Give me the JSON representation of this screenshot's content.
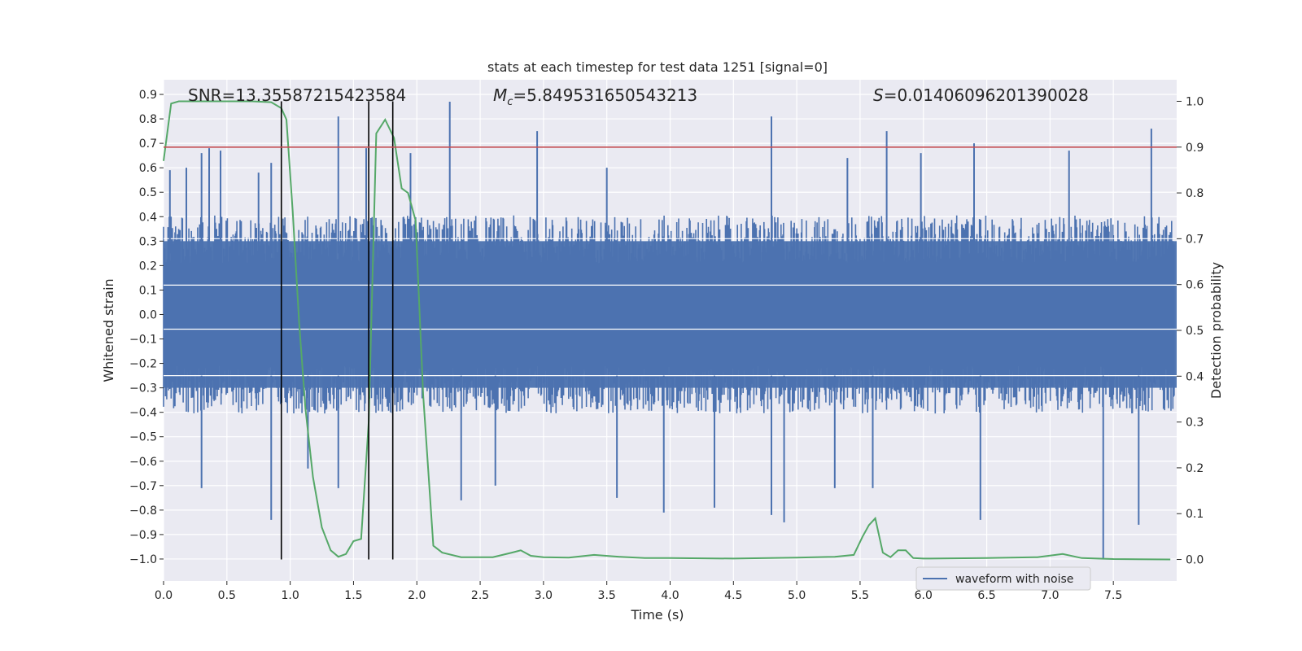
{
  "chart_data": {
    "type": "line",
    "title": "stats at each timestep for test data 1251 [signal=0]",
    "xlabel": "Time (s)",
    "ylabel": "Whitened strain",
    "y2label": "Detection probability",
    "xlim": [
      0.0,
      8.0
    ],
    "ylim": [
      -1.09,
      0.96
    ],
    "y2lim": [
      -0.047,
      1.047
    ],
    "x_ticks": [
      0.0,
      0.5,
      1.0,
      1.5,
      2.0,
      2.5,
      3.0,
      3.5,
      4.0,
      4.5,
      5.0,
      5.5,
      6.0,
      6.5,
      7.0,
      7.5
    ],
    "y_ticks": [
      0.9,
      0.8,
      0.7,
      0.6,
      0.5,
      0.4,
      0.3,
      0.2,
      0.1,
      0.0,
      -0.1,
      -0.2,
      -0.3,
      -0.4,
      -0.5,
      -0.6,
      -0.7,
      -0.8,
      -0.9,
      -1.0
    ],
    "y2_ticks": [
      1.0,
      0.9,
      0.8,
      0.7,
      0.6,
      0.5,
      0.4,
      0.3,
      0.2,
      0.1,
      0.0
    ],
    "grid": true,
    "legend_position": "bottom-right",
    "annotations": {
      "snr": "SNR=13.35587215423584",
      "mc_symbol": "M",
      "mc_sub": "c",
      "mc_value": "=5.849531650543213",
      "s_symbol": "S",
      "s_value": "=0.01406096201390028"
    },
    "colors": {
      "waveform": "#4c72b0",
      "probability": "#55a868",
      "threshold": "#c44e52",
      "markers": "#000000",
      "background": "#eaeaf2",
      "grid": "#ffffff"
    },
    "series": [
      {
        "name": "waveform with noise",
        "axis": "left",
        "style": "noise",
        "typical_amplitude": 0.3,
        "sample_count": 1600,
        "positive_spikes": [
          {
            "x": 0.05,
            "y": 0.59
          },
          {
            "x": 0.18,
            "y": 0.6
          },
          {
            "x": 0.3,
            "y": 0.66
          },
          {
            "x": 0.36,
            "y": 0.68
          },
          {
            "x": 0.45,
            "y": 0.67
          },
          {
            "x": 0.75,
            "y": 0.58
          },
          {
            "x": 0.85,
            "y": 0.62
          },
          {
            "x": 1.38,
            "y": 0.81
          },
          {
            "x": 1.6,
            "y": 0.68
          },
          {
            "x": 1.95,
            "y": 0.66
          },
          {
            "x": 2.26,
            "y": 0.87
          },
          {
            "x": 2.95,
            "y": 0.75
          },
          {
            "x": 3.5,
            "y": 0.6
          },
          {
            "x": 4.8,
            "y": 0.81
          },
          {
            "x": 5.4,
            "y": 0.64
          },
          {
            "x": 5.71,
            "y": 0.75
          },
          {
            "x": 5.98,
            "y": 0.66
          },
          {
            "x": 6.4,
            "y": 0.7
          },
          {
            "x": 7.15,
            "y": 0.67
          },
          {
            "x": 7.8,
            "y": 0.76
          }
        ],
        "negative_spikes": [
          {
            "x": 0.3,
            "y": -0.71
          },
          {
            "x": 0.85,
            "y": -0.84
          },
          {
            "x": 1.14,
            "y": -0.63
          },
          {
            "x": 1.38,
            "y": -0.71
          },
          {
            "x": 2.35,
            "y": -0.76
          },
          {
            "x": 2.62,
            "y": -0.7
          },
          {
            "x": 3.58,
            "y": -0.75
          },
          {
            "x": 3.95,
            "y": -0.81
          },
          {
            "x": 4.35,
            "y": -0.79
          },
          {
            "x": 4.8,
            "y": -0.82
          },
          {
            "x": 4.9,
            "y": -0.85
          },
          {
            "x": 5.3,
            "y": -0.71
          },
          {
            "x": 5.6,
            "y": -0.71
          },
          {
            "x": 6.45,
            "y": -0.84
          },
          {
            "x": 7.42,
            "y": -1.0
          },
          {
            "x": 7.7,
            "y": -0.86
          }
        ]
      },
      {
        "name": "",
        "axis": "right",
        "style": "line",
        "x": [
          0.0,
          0.06,
          0.12,
          0.2,
          0.3,
          0.5,
          0.7,
          0.85,
          0.93,
          0.97,
          1.02,
          1.07,
          1.12,
          1.18,
          1.25,
          1.32,
          1.38,
          1.44,
          1.5,
          1.56,
          1.62,
          1.68,
          1.75,
          1.82,
          1.88,
          1.93,
          1.99,
          2.05,
          2.13,
          2.2,
          2.35,
          2.6,
          2.75,
          2.82,
          2.9,
          3.0,
          3.2,
          3.4,
          3.6,
          3.8,
          4.0,
          4.5,
          5.0,
          5.3,
          5.45,
          5.52,
          5.57,
          5.62,
          5.68,
          5.74,
          5.8,
          5.86,
          5.92,
          6.0,
          6.5,
          6.9,
          7.1,
          7.25,
          7.5,
          7.95
        ],
        "y": [
          0.87,
          0.995,
          1.0,
          1.0,
          1.0,
          1.0,
          1.0,
          0.998,
          0.985,
          0.96,
          0.76,
          0.52,
          0.33,
          0.18,
          0.07,
          0.02,
          0.006,
          0.012,
          0.04,
          0.045,
          0.3,
          0.93,
          0.96,
          0.92,
          0.81,
          0.8,
          0.74,
          0.36,
          0.03,
          0.015,
          0.005,
          0.005,
          0.015,
          0.02,
          0.008,
          0.005,
          0.004,
          0.01,
          0.006,
          0.003,
          0.003,
          0.002,
          0.004,
          0.006,
          0.01,
          0.05,
          0.075,
          0.09,
          0.015,
          0.005,
          0.02,
          0.02,
          0.003,
          0.002,
          0.003,
          0.005,
          0.012,
          0.003,
          0.001,
          0.0
        ]
      }
    ],
    "threshold_line": {
      "axis": "right",
      "y": 0.9
    },
    "vertical_markers_x": [
      0.93,
      1.62,
      1.81
    ]
  }
}
